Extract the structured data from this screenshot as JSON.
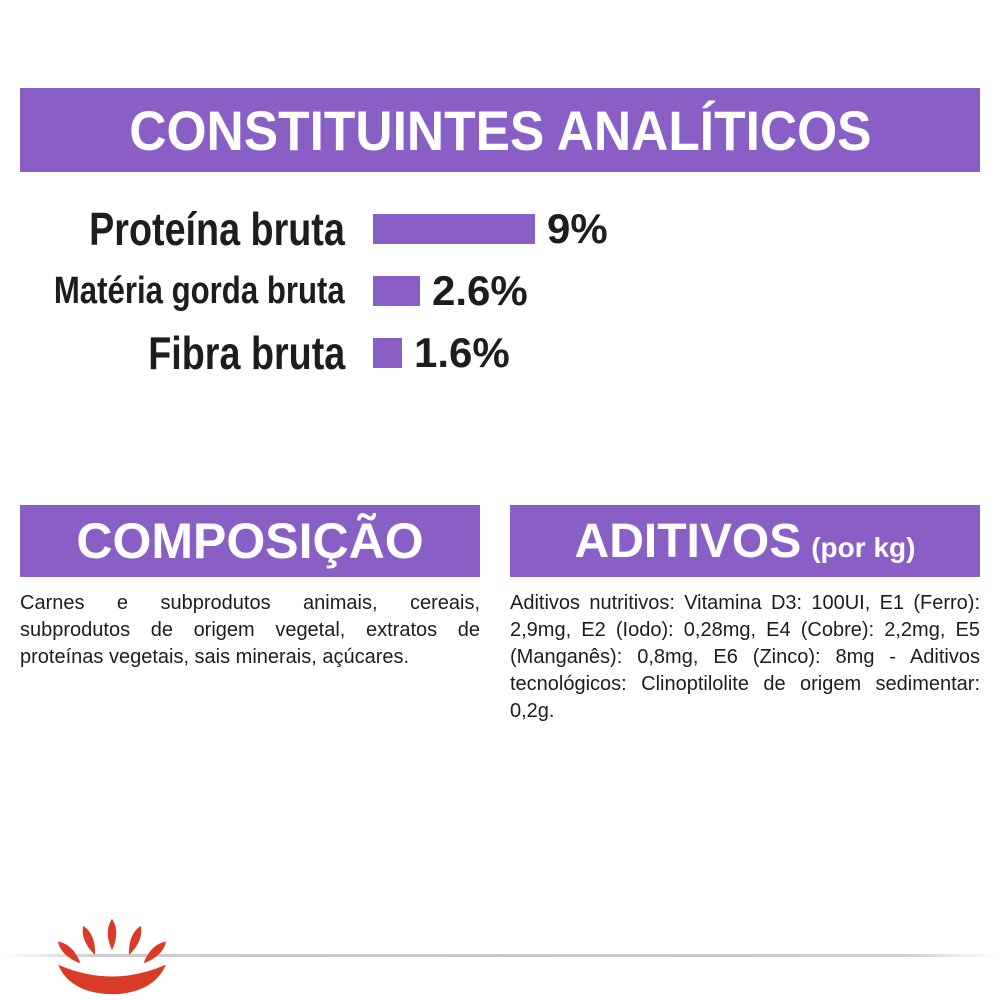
{
  "colors": {
    "purple": "#8a5fc5",
    "text": "#1d1d1b",
    "logo_red": "#d93b26",
    "background": "#ffffff"
  },
  "analytical": {
    "title": "CONSTITUINTES ANALÍTICOS",
    "rows": [
      {
        "label": "Proteína bruta",
        "value": 9,
        "display": "9%"
      },
      {
        "label": "Matéria gorda bruta",
        "value": 2.6,
        "display": "2.6%"
      },
      {
        "label": "Fibra bruta",
        "value": 1.6,
        "display": "1.6%"
      }
    ]
  },
  "composition": {
    "title": "COMPOSIÇÃO",
    "body": "Carnes e subprodutos animais, cereais, subprodutos de origem vegetal, extratos de proteínas vegetais, sais minerais, açúcares."
  },
  "additives": {
    "title": "ADITIVOS",
    "unit": "(por kg)",
    "body": "Aditivos nutritivos: Vitamina D3: 100UI, E1 (Ferro): 2,9mg, E2 (Iodo): 0,28mg, E4 (Cobre): 2,2mg, E5 (Manganês): 0,8mg, E6 (Zinco): 8mg - Aditivos tecnológicos: Clinoptilolite de origem sedimentar: 0,2g."
  },
  "logo": {
    "icon": "royal-canin-crown-logo-icon"
  },
  "chart_data": {
    "type": "bar",
    "orientation": "horizontal",
    "title": "CONSTITUINTES ANALÍTICOS",
    "categories": [
      "Proteína bruta",
      "Matéria gorda bruta",
      "Fibra bruta"
    ],
    "values": [
      9,
      2.6,
      1.6
    ],
    "unit": "%",
    "xlim": [
      0,
      9
    ],
    "grid": false,
    "bar_color": "#8a5fc5",
    "value_labels": [
      "9%",
      "2.6%",
      "1.6%"
    ]
  }
}
